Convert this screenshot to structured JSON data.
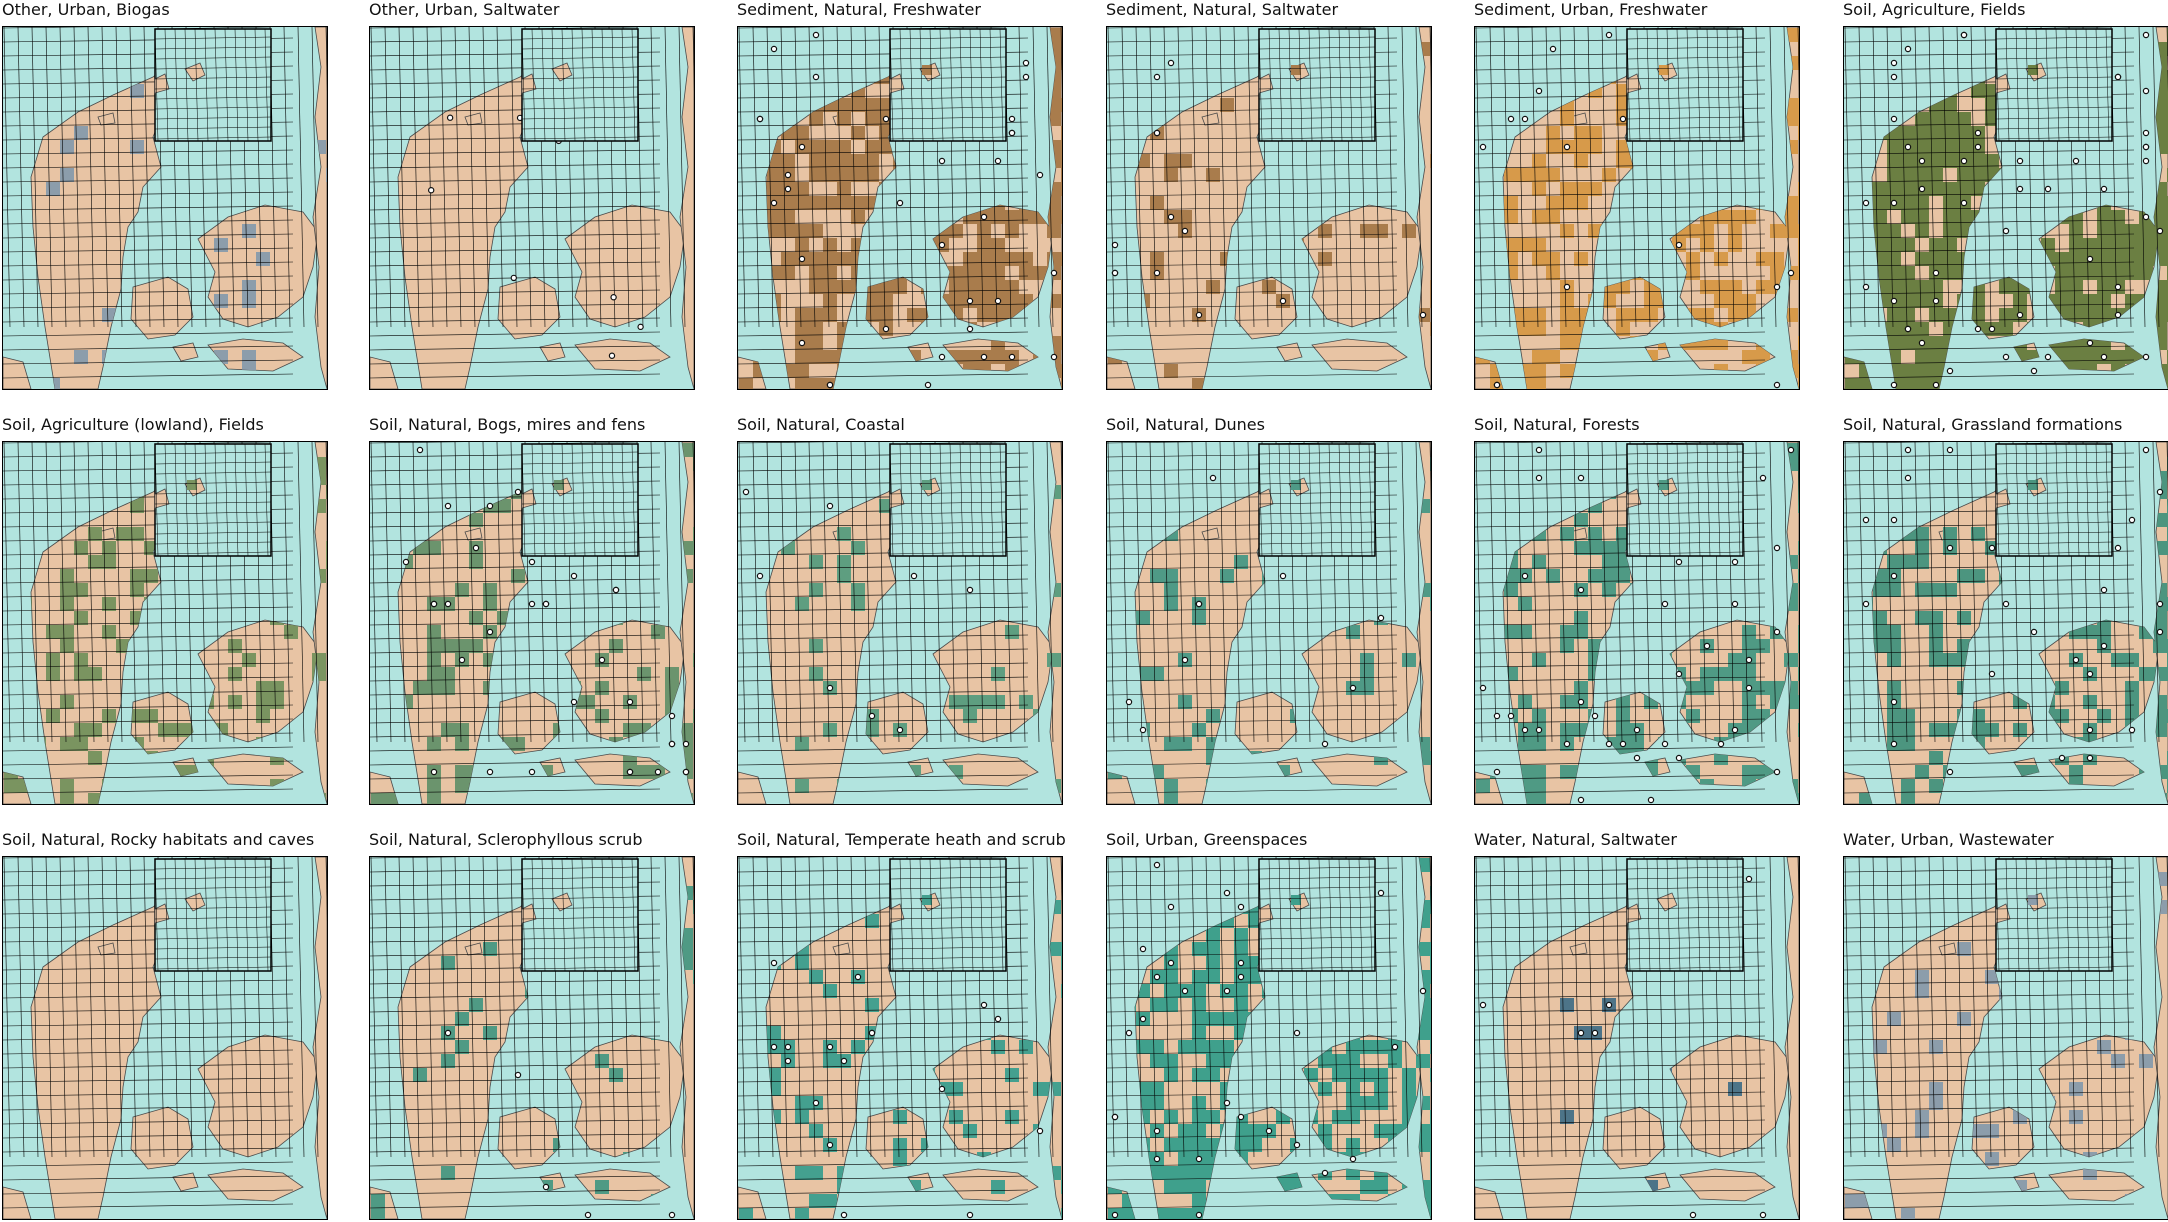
{
  "figure": {
    "colors": {
      "sea": "#b2e4df",
      "land": "#e8c4a4",
      "grid": "#000000",
      "outline": "#4a4a4a"
    },
    "panels": [
      {
        "title": "Other, Urban, Biogas",
        "fill": "#8c9dab",
        "coverage": 0.04,
        "points": 0
      },
      {
        "title": "Other, Urban, Saltwater",
        "fill": "#8c9dab",
        "coverage": 0.0,
        "points": 8
      },
      {
        "title": "Sediment, Natural, Freshwater",
        "fill": "#a97c4c",
        "coverage": 0.65,
        "points": 40
      },
      {
        "title": "Sediment, Natural, Saltwater",
        "fill": "#a97c4c",
        "coverage": 0.12,
        "points": 14
      },
      {
        "title": "Sediment, Urban, Freshwater",
        "fill": "#d79a4a",
        "coverage": 0.48,
        "points": 18
      },
      {
        "title": "Soil, Agriculture, Fields",
        "fill": "#6b7f42",
        "coverage": 0.8,
        "points": 60
      },
      {
        "title": "Soil, Agriculture (lowland), Fields",
        "fill": "#7a9460",
        "coverage": 0.22,
        "points": 0
      },
      {
        "title": "Soil, Natural, Bogs, mires and fens",
        "fill": "#6b946d",
        "coverage": 0.25,
        "points": 36
      },
      {
        "title": "Soil, Natural, Coastal",
        "fill": "#5e9e80",
        "coverage": 0.1,
        "points": 8
      },
      {
        "title": "Soil, Natural, Dunes",
        "fill": "#4f9a86",
        "coverage": 0.14,
        "points": 14
      },
      {
        "title": "Soil, Natural, Forests",
        "fill": "#4f9a84",
        "coverage": 0.35,
        "points": 40
      },
      {
        "title": "Soil, Natural, Grassland formations",
        "fill": "#4c957f",
        "coverage": 0.38,
        "points": 36
      },
      {
        "title": "Soil, Natural, Rocky habitats and caves",
        "fill": "#4f9a84",
        "coverage": 0.0,
        "points": 0
      },
      {
        "title": "Soil, Natural, Sclerophyllous scrub",
        "fill": "#4f9a84",
        "coverage": 0.05,
        "points": 6
      },
      {
        "title": "Soil, Natural, Temperate heath and scrub",
        "fill": "#44a08f",
        "coverage": 0.2,
        "points": 18
      },
      {
        "title": "Soil, Urban, Greenspaces",
        "fill": "#3fa08c",
        "coverage": 0.55,
        "points": 40
      },
      {
        "title": "Water, Natural, Saltwater",
        "fill": "#4d7488",
        "coverage": 0.03,
        "points": 8
      },
      {
        "title": "Water, Urban, Wastewater",
        "fill": "#8c9dab",
        "coverage": 0.12,
        "points": 0
      }
    ]
  }
}
